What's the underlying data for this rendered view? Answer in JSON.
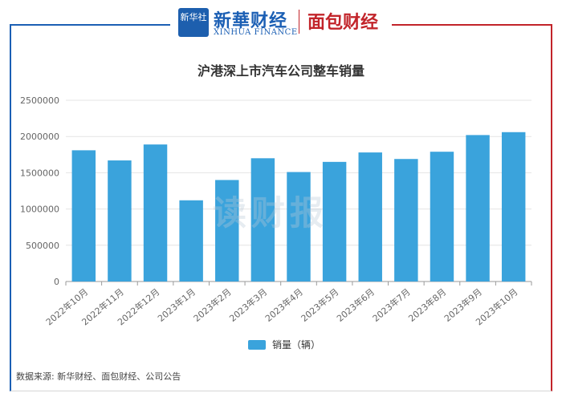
{
  "header": {
    "logo_text": "新华社",
    "brand1": "新華财经",
    "brand1_sub": "XINHUA FINANCE",
    "brand2": "面包财经"
  },
  "watermark": "读财报",
  "footer": {
    "source": "数据来源: 新华财经、面包财经、公司公告"
  },
  "colors": {
    "bar": "#3aa3dc",
    "frame_left": "#1b5fb4",
    "frame_right": "#c2242a"
  },
  "chart_data": {
    "type": "bar",
    "title": "沪港深上市汽车公司整车销量",
    "categories": [
      "2022年10月",
      "2022年11月",
      "2022年12月",
      "2023年1月",
      "2023年2月",
      "2023年3月",
      "2023年4月",
      "2023年5月",
      "2023年6月",
      "2023年7月",
      "2023年8月",
      "2023年9月",
      "2023年10月"
    ],
    "series": [
      {
        "name": "销量（辆）",
        "values": [
          1810000,
          1670000,
          1890000,
          1120000,
          1400000,
          1700000,
          1510000,
          1650000,
          1780000,
          1690000,
          1790000,
          2020000,
          2060000
        ]
      }
    ],
    "ylim": [
      0,
      2500000
    ],
    "yticks": [
      0,
      500000,
      1000000,
      1500000,
      2000000,
      2500000
    ],
    "grid": true,
    "legend_position": "bottom"
  }
}
